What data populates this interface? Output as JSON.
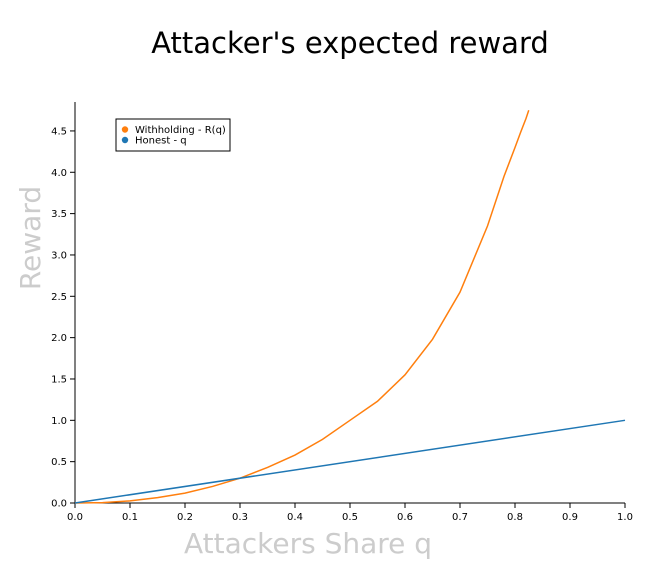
{
  "chart_data": {
    "type": "line",
    "title": "Attacker's expected reward",
    "xlabel": "Attackers Share q",
    "ylabel": "Reward",
    "xlim": [
      0.0,
      1.0
    ],
    "ylim": [
      0.0,
      4.85
    ],
    "x_ticks": [
      "0.0",
      "0.1",
      "0.2",
      "0.3",
      "0.4",
      "0.5",
      "0.6",
      "0.7",
      "0.8",
      "0.9",
      "1.0"
    ],
    "y_ticks": [
      "0.0",
      "0.5",
      "1.0",
      "1.5",
      "2.0",
      "2.5",
      "3.0",
      "3.5",
      "4.0",
      "4.5"
    ],
    "legend_position": "top-left",
    "series": [
      {
        "name": "Withholding - R(q)",
        "color": "#ff7f0e",
        "x": [
          0.0,
          0.05,
          0.1,
          0.15,
          0.2,
          0.25,
          0.3,
          0.35,
          0.4,
          0.45,
          0.5,
          0.55,
          0.6,
          0.65,
          0.7,
          0.75,
          0.78,
          0.8,
          0.81,
          0.82,
          0.825
        ],
        "y": [
          0.0,
          0.005,
          0.025,
          0.065,
          0.12,
          0.2,
          0.3,
          0.43,
          0.58,
          0.77,
          1.0,
          1.23,
          1.55,
          1.98,
          2.55,
          3.35,
          3.95,
          4.3,
          4.48,
          4.65,
          4.75
        ]
      },
      {
        "name": "Honest - q",
        "color": "#1f77b4",
        "x": [
          0.0,
          1.0
        ],
        "y": [
          0.0,
          1.0
        ]
      }
    ]
  }
}
